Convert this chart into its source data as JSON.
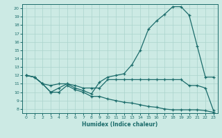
{
  "xlabel": "Humidex (Indice chaleur)",
  "background_color": "#cceae4",
  "grid_color": "#aad4cc",
  "line_color": "#1a6b6a",
  "xlim": [
    -0.5,
    23.5
  ],
  "ylim": [
    7.5,
    20.5
  ],
  "yticks": [
    8,
    9,
    10,
    11,
    12,
    13,
    14,
    15,
    16,
    17,
    18,
    19,
    20
  ],
  "xticks": [
    0,
    1,
    2,
    3,
    4,
    5,
    6,
    7,
    8,
    9,
    10,
    11,
    12,
    13,
    14,
    15,
    16,
    17,
    18,
    19,
    20,
    21,
    22,
    23
  ],
  "series": [
    {
      "x": [
        0,
        1,
        2,
        3,
        4,
        5,
        6,
        7,
        8,
        9,
        10,
        11,
        12,
        13,
        14,
        15,
        16,
        17,
        18,
        19,
        20,
        21,
        22,
        23
      ],
      "y": [
        12.0,
        11.8,
        11.0,
        10.0,
        10.5,
        11.0,
        10.5,
        10.2,
        9.8,
        11.2,
        11.8,
        12.0,
        12.2,
        13.3,
        15.0,
        17.5,
        18.5,
        19.3,
        20.2,
        20.2,
        19.2,
        15.5,
        11.8,
        11.8
      ]
    },
    {
      "x": [
        0,
        1,
        2,
        3,
        4,
        5,
        6,
        7,
        8,
        9,
        10,
        11,
        12,
        13,
        14,
        15,
        16,
        17,
        18,
        19,
        20,
        21,
        22,
        23
      ],
      "y": [
        12.0,
        11.8,
        11.0,
        10.8,
        11.0,
        11.0,
        10.8,
        10.5,
        10.5,
        10.5,
        11.5,
        11.5,
        11.5,
        11.5,
        11.5,
        11.5,
        11.5,
        11.5,
        11.5,
        11.5,
        10.8,
        10.8,
        10.5,
        7.8
      ]
    },
    {
      "x": [
        0,
        1,
        2,
        3,
        4,
        5,
        6,
        7,
        8,
        9,
        10,
        11,
        12,
        13,
        14,
        15,
        16,
        17,
        18,
        19,
        20,
        21,
        22,
        23
      ],
      "y": [
        12.0,
        11.8,
        11.0,
        10.0,
        10.0,
        10.8,
        10.3,
        10.0,
        9.5,
        9.5,
        9.2,
        9.0,
        8.8,
        8.7,
        8.5,
        8.3,
        8.2,
        8.0,
        7.9,
        7.9,
        7.9,
        7.9,
        7.8,
        7.6
      ]
    }
  ]
}
